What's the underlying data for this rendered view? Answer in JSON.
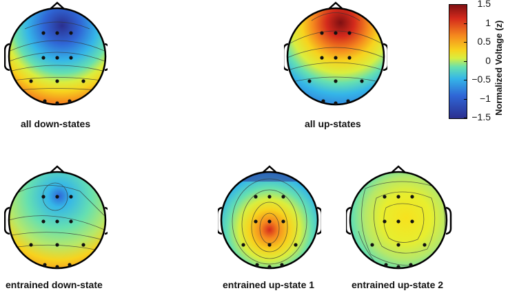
{
  "maps": [
    {
      "key": "down_all",
      "caption": "all down-states",
      "pattern": "frontal-negative"
    },
    {
      "key": "up_all",
      "caption": "all up-states",
      "pattern": "frontal-positive"
    },
    {
      "key": "down_ent",
      "caption": "entrained down-state",
      "pattern": "frontal-negative-weak"
    },
    {
      "key": "up_ent_1",
      "caption": "entrained up-state 1",
      "pattern": "central-positive"
    },
    {
      "key": "up_ent_2",
      "caption": "entrained up-state 2",
      "pattern": "central-broad-positive"
    }
  ],
  "colorbar": {
    "title": "Normalized Voltage (z)",
    "ticks": [
      "1.5",
      "1",
      "0.5",
      "0",
      "−0.5",
      "−1",
      "−1.5"
    ],
    "min": -1.5,
    "max": 1.5,
    "colormap": [
      "#2b2f8f",
      "#2f66d6",
      "#35b6e8",
      "#66e0b0",
      "#d9ee3f",
      "#f7d31e",
      "#f5881e",
      "#d42a1c",
      "#7f1012"
    ]
  },
  "electrodes": 13
}
